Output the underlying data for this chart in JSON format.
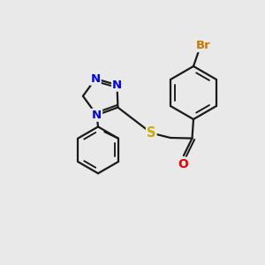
{
  "background_color": "#e9e9e9",
  "bond_color": "#1a1a1a",
  "N_color": "#0000ee",
  "O_color": "#ee0000",
  "S_color": "#ccaa00",
  "Br_color": "#cc7700",
  "line_width": 1.6,
  "figsize": [
    3.0,
    3.0
  ],
  "dpi": 100,
  "xlim": [
    0,
    10
  ],
  "ylim": [
    0,
    10
  ]
}
